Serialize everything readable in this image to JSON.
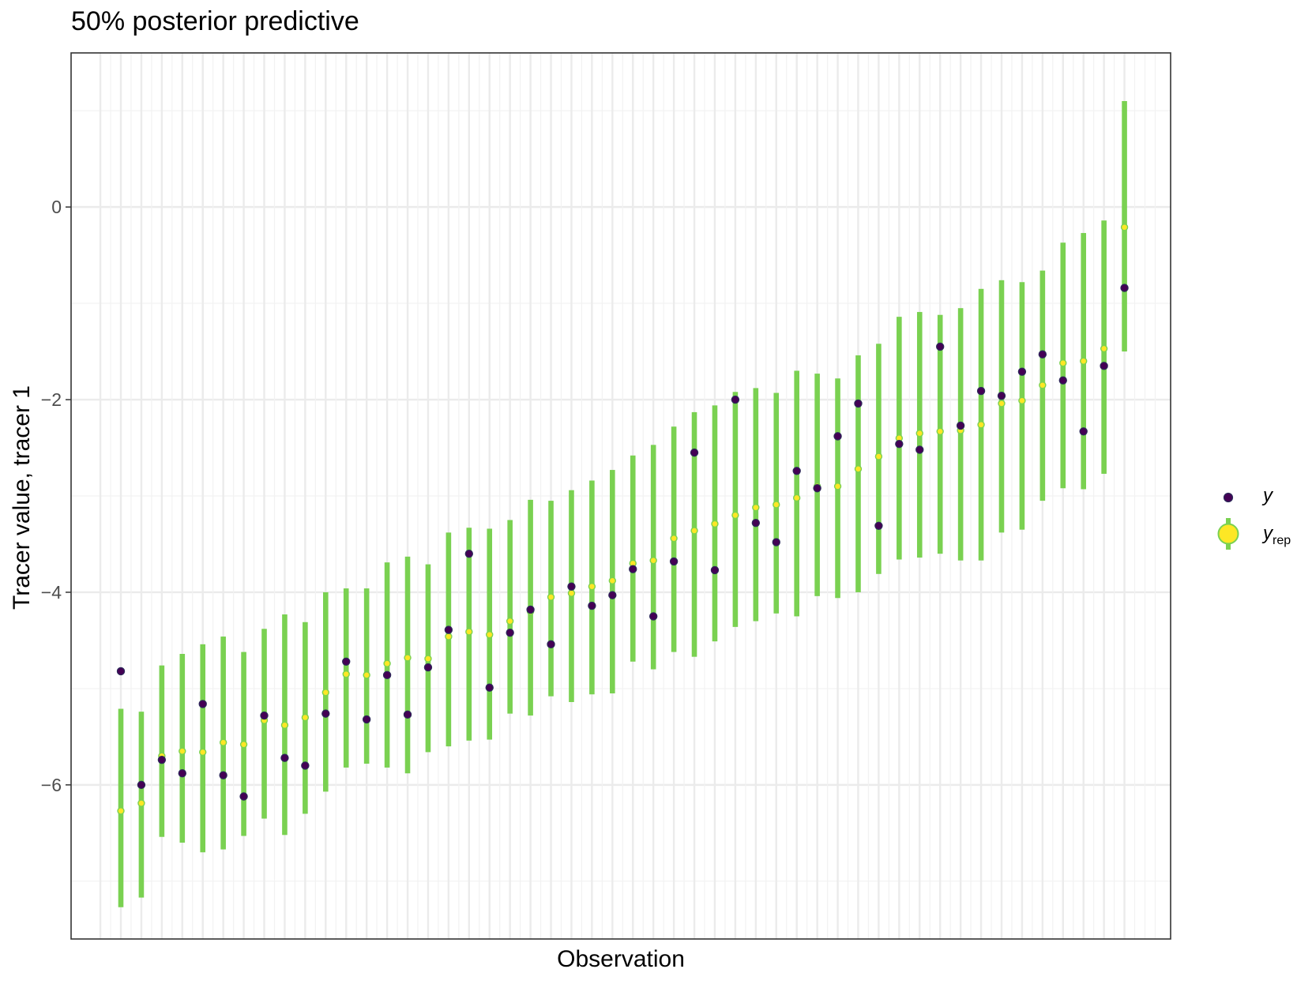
{
  "chart_data": {
    "type": "scatter",
    "title": "50% posterior predictive",
    "xlabel": "Observation",
    "ylabel": "Tracer value, tracer 1",
    "ylim": [
      -7.6,
      1.6
    ],
    "yticks": [
      -6,
      -4,
      -2,
      0
    ],
    "ytick_labels": [
      "−6",
      "−4",
      "−2",
      "0"
    ],
    "x_axis_tick_labels_shown": false,
    "grid": true,
    "legend_position": "right",
    "legend": [
      {
        "label": "y",
        "marker": "point",
        "color": "#440154"
      },
      {
        "label": "y",
        "subscript": "rep",
        "marker": "point-with-interval",
        "color": "#FDE725",
        "interval_color": "#7AD151"
      }
    ],
    "colors": {
      "y_point": "#440154",
      "y_point_outline": "#2D2A5A",
      "yrep_point": "#FDE725",
      "interval": "#7AD151"
    },
    "y": [
      -4.82,
      -6.0,
      -5.74,
      -5.88,
      -5.16,
      -5.9,
      -6.12,
      -5.28,
      -5.72,
      -5.8,
      -5.26,
      -4.72,
      -5.32,
      -4.86,
      -5.27,
      -4.78,
      -4.39,
      -3.6,
      -4.99,
      -4.42,
      -4.18,
      -4.54,
      -3.94,
      -4.14,
      -4.03,
      -3.76,
      -4.25,
      -3.68,
      -2.55,
      -3.77,
      -2.0,
      -3.28,
      -3.48,
      -2.74,
      -2.92,
      -2.38,
      -2.04,
      -3.31,
      -2.46,
      -2.52,
      -1.45,
      -2.27,
      -1.91,
      -1.96,
      -1.71,
      -1.53,
      -1.8,
      -2.33,
      -1.65,
      -0.84
    ],
    "yrep_median": [
      -6.27,
      -6.19,
      -5.7,
      -5.65,
      -5.66,
      -5.56,
      -5.58,
      -5.33,
      -5.38,
      -5.3,
      -5.04,
      -4.85,
      -4.86,
      -4.74,
      -4.68,
      -4.69,
      -4.46,
      -4.41,
      -4.44,
      -4.3,
      -4.2,
      -4.05,
      -4.01,
      -3.94,
      -3.88,
      -3.7,
      -3.67,
      -3.44,
      -3.36,
      -3.29,
      -3.2,
      -3.12,
      -3.09,
      -3.02,
      -2.9,
      -2.9,
      -2.72,
      -2.59,
      -2.4,
      -2.35,
      -2.33,
      -2.32,
      -2.26,
      -2.04,
      -2.01,
      -1.85,
      -1.62,
      -1.6,
      -1.47,
      -0.21
    ],
    "yrep_lower": [
      -7.27,
      -7.17,
      -6.54,
      -6.6,
      -6.7,
      -6.67,
      -6.53,
      -6.35,
      -6.52,
      -6.3,
      -6.07,
      -5.82,
      -5.78,
      -5.82,
      -5.88,
      -5.66,
      -5.6,
      -5.54,
      -5.53,
      -5.26,
      -5.28,
      -5.08,
      -5.14,
      -5.06,
      -5.05,
      -4.72,
      -4.8,
      -4.62,
      -4.67,
      -4.51,
      -4.36,
      -4.3,
      -4.22,
      -4.25,
      -4.04,
      -4.06,
      -4.0,
      -3.81,
      -3.66,
      -3.64,
      -3.6,
      -3.67,
      -3.67,
      -3.38,
      -3.35,
      -3.05,
      -2.92,
      -2.93,
      -2.77,
      -1.5
    ],
    "yrep_upper": [
      -5.21,
      -5.24,
      -4.76,
      -4.64,
      -4.54,
      -4.46,
      -4.62,
      -4.38,
      -4.23,
      -4.31,
      -4.0,
      -3.96,
      -3.96,
      -3.69,
      -3.63,
      -3.71,
      -3.38,
      -3.33,
      -3.34,
      -3.25,
      -3.04,
      -3.05,
      -2.94,
      -2.84,
      -2.73,
      -2.58,
      -2.47,
      -2.28,
      -2.13,
      -2.06,
      -1.92,
      -1.88,
      -1.93,
      -1.7,
      -1.73,
      -1.78,
      -1.54,
      -1.42,
      -1.14,
      -1.09,
      -1.12,
      -1.05,
      -0.85,
      -0.76,
      -0.78,
      -0.66,
      -0.37,
      -0.27,
      -0.14,
      1.1
    ]
  }
}
